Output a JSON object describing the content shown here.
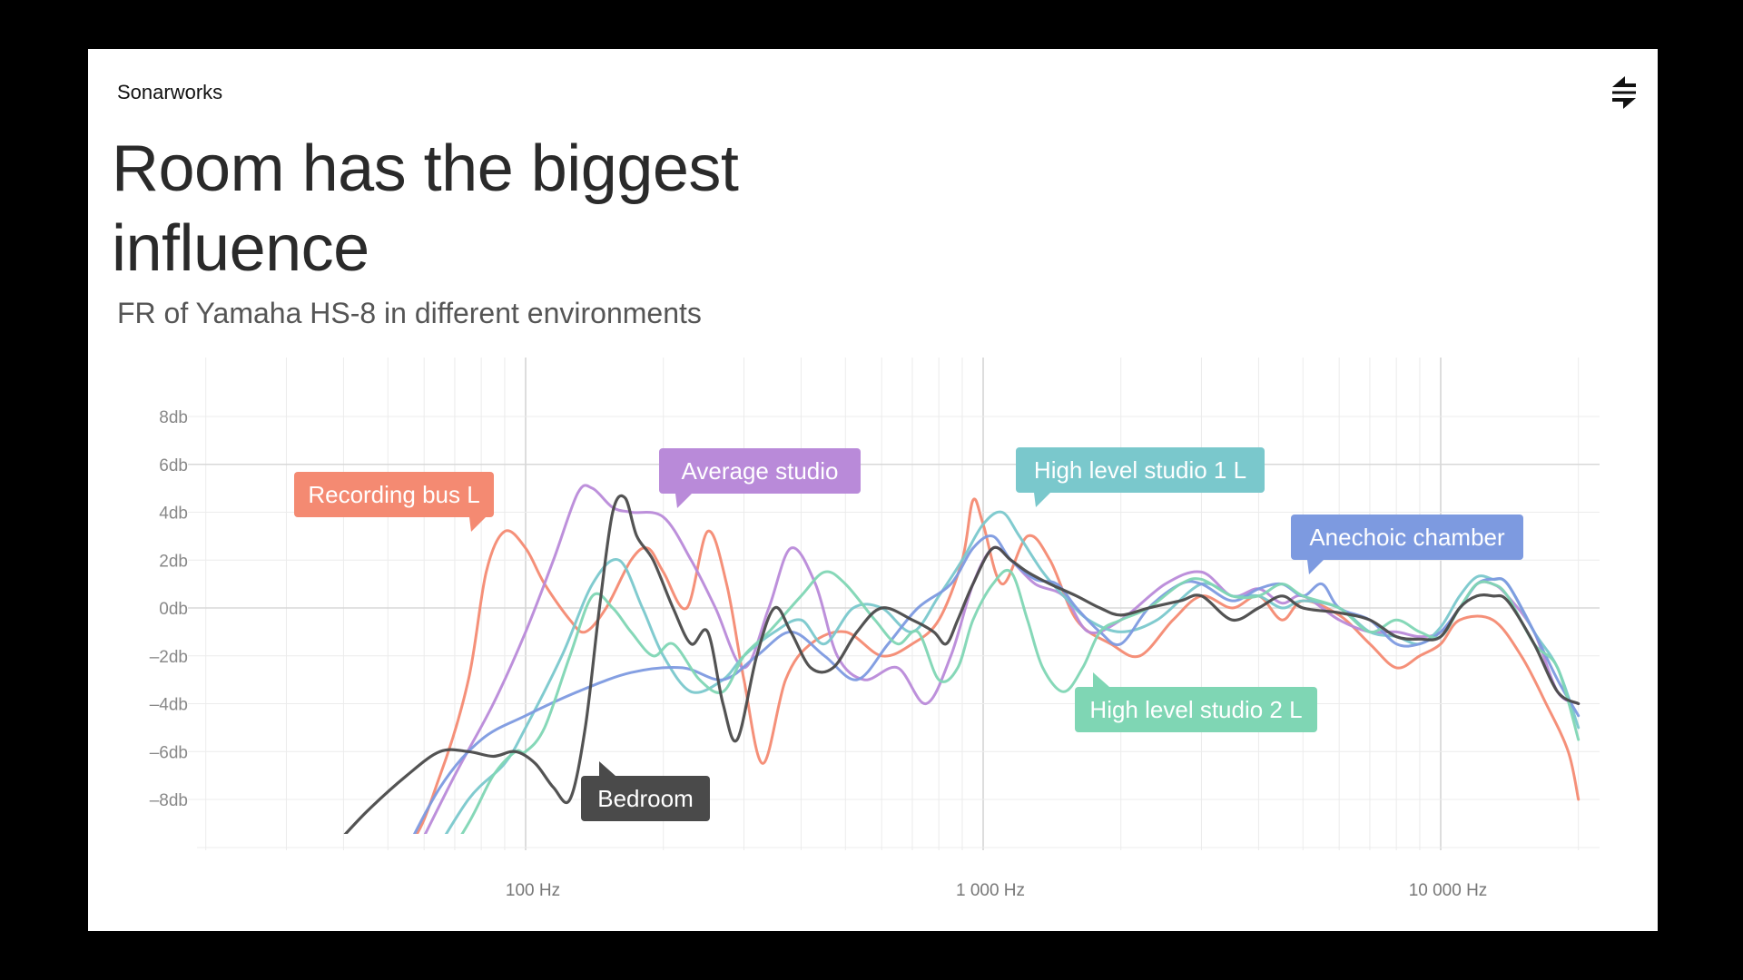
{
  "slide": {
    "brand": "Sonarworks",
    "title": "Room has the biggest influence",
    "subtitle": "FR of Yamaha HS-8 in different environments",
    "logo_icon": "sonarworks-logo-icon"
  },
  "chart_data": {
    "type": "line",
    "title": "",
    "xlabel": "",
    "ylabel": "",
    "x_scale": "log",
    "xlim": [
      20,
      20000
    ],
    "ylim": [
      -10,
      9
    ],
    "y_ticks": [
      8,
      6,
      4,
      2,
      0,
      -2,
      -4,
      -6,
      -8
    ],
    "y_tick_labels": [
      "8db",
      "6db",
      "4db",
      "2db",
      "0db",
      "–2db",
      "–4db",
      "–6db",
      "–8db"
    ],
    "x_ticks": [
      100,
      1000,
      10000
    ],
    "x_tick_labels": [
      "100 Hz",
      "1 000 Hz",
      "10 000 Hz"
    ],
    "grid": true,
    "legend": "callouts",
    "series": [
      {
        "name": "Recording bus L",
        "color": "#f48a72",
        "callout_anchor": [
          90,
          4.5
        ],
        "points": [
          [
            40,
            -11
          ],
          [
            55,
            -10
          ],
          [
            65,
            -7
          ],
          [
            75,
            -3
          ],
          [
            82,
            1.5
          ],
          [
            90,
            3.2
          ],
          [
            100,
            2.5
          ],
          [
            110,
            1
          ],
          [
            125,
            -0.5
          ],
          [
            135,
            -1
          ],
          [
            150,
            0
          ],
          [
            170,
            2
          ],
          [
            185,
            2.5
          ],
          [
            200,
            1.5
          ],
          [
            225,
            0
          ],
          [
            250,
            3.2
          ],
          [
            275,
            1
          ],
          [
            300,
            -3
          ],
          [
            330,
            -6.5
          ],
          [
            370,
            -3
          ],
          [
            420,
            -1.5
          ],
          [
            500,
            -1
          ],
          [
            600,
            -2
          ],
          [
            700,
            -1.5
          ],
          [
            800,
            -0.5
          ],
          [
            900,
            2
          ],
          [
            950,
            4.5
          ],
          [
            1000,
            3.5
          ],
          [
            1100,
            1
          ],
          [
            1250,
            3
          ],
          [
            1400,
            2
          ],
          [
            1600,
            -0.5
          ],
          [
            1900,
            -1.5
          ],
          [
            2200,
            -2
          ],
          [
            2600,
            -0.5
          ],
          [
            3000,
            0.5
          ],
          [
            3500,
            0
          ],
          [
            4000,
            0.5
          ],
          [
            4500,
            -0.5
          ],
          [
            5000,
            0.3
          ],
          [
            6000,
            -0.3
          ],
          [
            7000,
            -1.5
          ],
          [
            8000,
            -2.5
          ],
          [
            9000,
            -2
          ],
          [
            10000,
            -1.5
          ],
          [
            11000,
            -0.5
          ],
          [
            13000,
            -0.5
          ],
          [
            15000,
            -2
          ],
          [
            17000,
            -4
          ],
          [
            19000,
            -6
          ],
          [
            20000,
            -8
          ]
        ]
      },
      {
        "name": "Average studio",
        "color": "#b98ad9",
        "callout_anchor": [
          150,
          5.2
        ],
        "points": [
          [
            55,
            -11
          ],
          [
            70,
            -7
          ],
          [
            85,
            -4
          ],
          [
            100,
            -1
          ],
          [
            115,
            2
          ],
          [
            130,
            4.8
          ],
          [
            140,
            5
          ],
          [
            155,
            4.2
          ],
          [
            170,
            4
          ],
          [
            200,
            3.8
          ],
          [
            230,
            2
          ],
          [
            260,
            0
          ],
          [
            300,
            -2.5
          ],
          [
            340,
            0
          ],
          [
            380,
            2.5
          ],
          [
            430,
            1
          ],
          [
            480,
            -2
          ],
          [
            550,
            -3
          ],
          [
            650,
            -2.5
          ],
          [
            750,
            -4
          ],
          [
            850,
            -2
          ],
          [
            950,
            1
          ],
          [
            1050,
            2.5
          ],
          [
            1150,
            2
          ],
          [
            1300,
            1
          ],
          [
            1500,
            0.5
          ],
          [
            1700,
            -1
          ],
          [
            2000,
            -0.5
          ],
          [
            2500,
            1
          ],
          [
            3000,
            1.5
          ],
          [
            3500,
            0.5
          ],
          [
            4000,
            0.8
          ],
          [
            4500,
            0.2
          ],
          [
            5000,
            0.5
          ],
          [
            6000,
            -0.5
          ],
          [
            7000,
            -1
          ],
          [
            8000,
            -1
          ],
          [
            9000,
            -1.2
          ],
          [
            10000,
            -1
          ],
          [
            11000,
            0
          ],
          [
            12000,
            1
          ],
          [
            13000,
            1
          ],
          [
            14000,
            0.5
          ],
          [
            16000,
            -1
          ],
          [
            18000,
            -3.5
          ],
          [
            20000,
            -4
          ]
        ]
      },
      {
        "name": "High level studio 1 L",
        "color": "#7ac8cc",
        "callout_anchor": [
          1150,
          4
        ],
        "points": [
          [
            60,
            -11
          ],
          [
            75,
            -8
          ],
          [
            90,
            -6.5
          ],
          [
            100,
            -5
          ],
          [
            120,
            -2
          ],
          [
            140,
            1
          ],
          [
            160,
            2
          ],
          [
            180,
            0
          ],
          [
            200,
            -2
          ],
          [
            230,
            -3.5
          ],
          [
            270,
            -3
          ],
          [
            300,
            -2
          ],
          [
            350,
            -1
          ],
          [
            400,
            -0.5
          ],
          [
            450,
            -1.5
          ],
          [
            520,
            0
          ],
          [
            600,
            0
          ],
          [
            700,
            -1
          ],
          [
            800,
            0.5
          ],
          [
            900,
            2
          ],
          [
            1000,
            3.5
          ],
          [
            1100,
            4
          ],
          [
            1200,
            3
          ],
          [
            1350,
            1.5
          ],
          [
            1500,
            0.5
          ],
          [
            1700,
            -0.5
          ],
          [
            2000,
            -1
          ],
          [
            2400,
            -0.5
          ],
          [
            3000,
            1
          ],
          [
            3500,
            0.5
          ],
          [
            4000,
            0.5
          ],
          [
            4500,
            0
          ],
          [
            5000,
            0.3
          ],
          [
            6000,
            0
          ],
          [
            7000,
            -1
          ],
          [
            8000,
            -1.2
          ],
          [
            9000,
            -1.5
          ],
          [
            10000,
            -0.8
          ],
          [
            11000,
            0.5
          ],
          [
            12000,
            1.3
          ],
          [
            13000,
            1.2
          ],
          [
            14000,
            1
          ],
          [
            16000,
            -1
          ],
          [
            18000,
            -2.5
          ],
          [
            20000,
            -5
          ]
        ]
      },
      {
        "name": "Anechoic chamber",
        "color": "#7d9ae0",
        "callout_anchor": [
          5200,
          1.5
        ],
        "points": [
          [
            52,
            -11
          ],
          [
            65,
            -7.5
          ],
          [
            80,
            -5.5
          ],
          [
            100,
            -4.5
          ],
          [
            130,
            -3.5
          ],
          [
            170,
            -2.7
          ],
          [
            220,
            -2.5
          ],
          [
            270,
            -3
          ],
          [
            320,
            -2
          ],
          [
            380,
            -1
          ],
          [
            450,
            -2
          ],
          [
            530,
            -3
          ],
          [
            620,
            -1.5
          ],
          [
            720,
            0
          ],
          [
            850,
            1
          ],
          [
            950,
            2.5
          ],
          [
            1050,
            3
          ],
          [
            1150,
            2
          ],
          [
            1300,
            1.2
          ],
          [
            1450,
            1
          ],
          [
            1600,
            0
          ],
          [
            1800,
            -1
          ],
          [
            2000,
            -1.5
          ],
          [
            2300,
            0
          ],
          [
            2700,
            1
          ],
          [
            3000,
            1
          ],
          [
            3500,
            0.3
          ],
          [
            4000,
            0.8
          ],
          [
            4500,
            1
          ],
          [
            5000,
            0.5
          ],
          [
            5500,
            1
          ],
          [
            6000,
            0
          ],
          [
            7000,
            -0.5
          ],
          [
            8000,
            -1.5
          ],
          [
            9000,
            -1.5
          ],
          [
            10000,
            -1
          ],
          [
            11000,
            0
          ],
          [
            12000,
            1
          ],
          [
            13000,
            1.2
          ],
          [
            14000,
            1
          ],
          [
            16000,
            -1
          ],
          [
            18000,
            -3
          ],
          [
            20000,
            -4.5
          ]
        ]
      },
      {
        "name": "High level studio 2 L",
        "color": "#7fd6b4",
        "callout_anchor": [
          2300,
          -3
        ],
        "points": [
          [
            60,
            -12
          ],
          [
            75,
            -9
          ],
          [
            85,
            -7
          ],
          [
            95,
            -6
          ],
          [
            100,
            -6
          ],
          [
            110,
            -5
          ],
          [
            125,
            -2
          ],
          [
            140,
            0.5
          ],
          [
            155,
            0
          ],
          [
            170,
            -1
          ],
          [
            190,
            -2
          ],
          [
            210,
            -1.5
          ],
          [
            240,
            -3
          ],
          [
            270,
            -3.5
          ],
          [
            300,
            -2
          ],
          [
            340,
            -1
          ],
          [
            400,
            0.5
          ],
          [
            450,
            1.5
          ],
          [
            500,
            1
          ],
          [
            580,
            -0.5
          ],
          [
            650,
            -1.5
          ],
          [
            720,
            -1
          ],
          [
            800,
            -3
          ],
          [
            880,
            -2.5
          ],
          [
            950,
            -0.5
          ],
          [
            1050,
            1
          ],
          [
            1150,
            1.5
          ],
          [
            1250,
            -0.5
          ],
          [
            1350,
            -2.5
          ],
          [
            1500,
            -3.5
          ],
          [
            1650,
            -2.5
          ],
          [
            1800,
            -1
          ],
          [
            2000,
            -0.5
          ],
          [
            2300,
            0
          ],
          [
            2700,
            1
          ],
          [
            3000,
            1.2
          ],
          [
            3500,
            0.5
          ],
          [
            4000,
            0.5
          ],
          [
            4500,
            1
          ],
          [
            5000,
            0.5
          ],
          [
            6000,
            0
          ],
          [
            7000,
            -1
          ],
          [
            8000,
            -0.5
          ],
          [
            9000,
            -1
          ],
          [
            10000,
            -1.2
          ],
          [
            11000,
            0
          ],
          [
            12000,
            1
          ],
          [
            13000,
            1
          ],
          [
            14000,
            0.5
          ],
          [
            16000,
            -1.5
          ],
          [
            18000,
            -2.5
          ],
          [
            20000,
            -5.5
          ]
        ]
      },
      {
        "name": "Bedroom",
        "color": "#4a4a4a",
        "callout_anchor": [
          150,
          -7
        ],
        "points": [
          [
            38,
            -10
          ],
          [
            45,
            -8.5
          ],
          [
            55,
            -7
          ],
          [
            65,
            -6
          ],
          [
            75,
            -6
          ],
          [
            85,
            -6.2
          ],
          [
            95,
            -6
          ],
          [
            105,
            -6.5
          ],
          [
            115,
            -7.5
          ],
          [
            125,
            -8
          ],
          [
            135,
            -5
          ],
          [
            145,
            0
          ],
          [
            155,
            4
          ],
          [
            165,
            4.6
          ],
          [
            175,
            3
          ],
          [
            190,
            2
          ],
          [
            210,
            0
          ],
          [
            230,
            -1.5
          ],
          [
            250,
            -1
          ],
          [
            270,
            -4
          ],
          [
            290,
            -5.5
          ],
          [
            320,
            -2
          ],
          [
            350,
            0
          ],
          [
            380,
            -1
          ],
          [
            420,
            -2.5
          ],
          [
            470,
            -2.5
          ],
          [
            530,
            -1
          ],
          [
            600,
            0
          ],
          [
            700,
            -0.5
          ],
          [
            780,
            -1
          ],
          [
            830,
            -1.5
          ],
          [
            880,
            -0.5
          ],
          [
            950,
            1
          ],
          [
            1050,
            2.5
          ],
          [
            1150,
            2
          ],
          [
            1250,
            1.5
          ],
          [
            1400,
            1
          ],
          [
            1600,
            0.5
          ],
          [
            1800,
            0
          ],
          [
            2000,
            -0.3
          ],
          [
            2300,
            0
          ],
          [
            2700,
            0.3
          ],
          [
            3000,
            0.5
          ],
          [
            3500,
            -0.5
          ],
          [
            4000,
            0
          ],
          [
            4500,
            0.5
          ],
          [
            5000,
            0
          ],
          [
            6000,
            -0.2
          ],
          [
            7000,
            -0.5
          ],
          [
            8000,
            -1.2
          ],
          [
            9000,
            -1.3
          ],
          [
            10000,
            -1.2
          ],
          [
            11000,
            0
          ],
          [
            12000,
            0.5
          ],
          [
            13000,
            0.5
          ],
          [
            14000,
            0.3
          ],
          [
            16000,
            -1.5
          ],
          [
            18000,
            -3.5
          ],
          [
            20000,
            -4
          ]
        ]
      }
    ]
  }
}
